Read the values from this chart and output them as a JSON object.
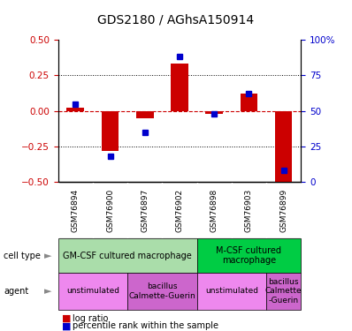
{
  "title": "GDS2180 / AGhsA150914",
  "samples": [
    "GSM76894",
    "GSM76900",
    "GSM76897",
    "GSM76902",
    "GSM76898",
    "GSM76903",
    "GSM76899"
  ],
  "log_ratio": [
    0.02,
    -0.28,
    -0.05,
    0.33,
    -0.02,
    0.12,
    -0.52
  ],
  "percentile_rank": [
    55,
    18,
    35,
    88,
    48,
    62,
    8
  ],
  "ylim_left": [
    -0.5,
    0.5
  ],
  "ylim_right": [
    0,
    100
  ],
  "yticks_left": [
    -0.5,
    -0.25,
    0.0,
    0.25,
    0.5
  ],
  "yticks_right": [
    0,
    25,
    50,
    75,
    100
  ],
  "ytick_labels_right": [
    "0",
    "25",
    "50",
    "75",
    "100%"
  ],
  "dotted_lines": [
    -0.25,
    0.25
  ],
  "bar_color_log": "#cc0000",
  "bar_color_pct": "#0000cc",
  "cell_type_groups": [
    {
      "label": "GM-CSF cultured macrophage",
      "start": 0,
      "end": 3,
      "color": "#aaddaa"
    },
    {
      "label": "M-CSF cultured\nmacrophage",
      "start": 4,
      "end": 6,
      "color": "#00cc44"
    }
  ],
  "agent_groups": [
    {
      "label": "unstimulated",
      "start": 0,
      "end": 1,
      "color": "#ee88ee"
    },
    {
      "label": "bacillus\nCalmette-Guerin",
      "start": 2,
      "end": 3,
      "color": "#cc66cc"
    },
    {
      "label": "unstimulated",
      "start": 4,
      "end": 5,
      "color": "#ee88ee"
    },
    {
      "label": "bacillus\nCalmette\n-Guerin",
      "start": 6,
      "end": 6,
      "color": "#cc66cc"
    }
  ],
  "tick_color_left": "#cc0000",
  "tick_color_right": "#0000cc",
  "background_color": "#ffffff",
  "sample_bg_color": "#cccccc",
  "title_fontsize": 10,
  "axis_fontsize": 7.5,
  "sample_fontsize": 6.5,
  "cell_fontsize": 7,
  "agent_fontsize": 6.5,
  "legend_fontsize": 7
}
